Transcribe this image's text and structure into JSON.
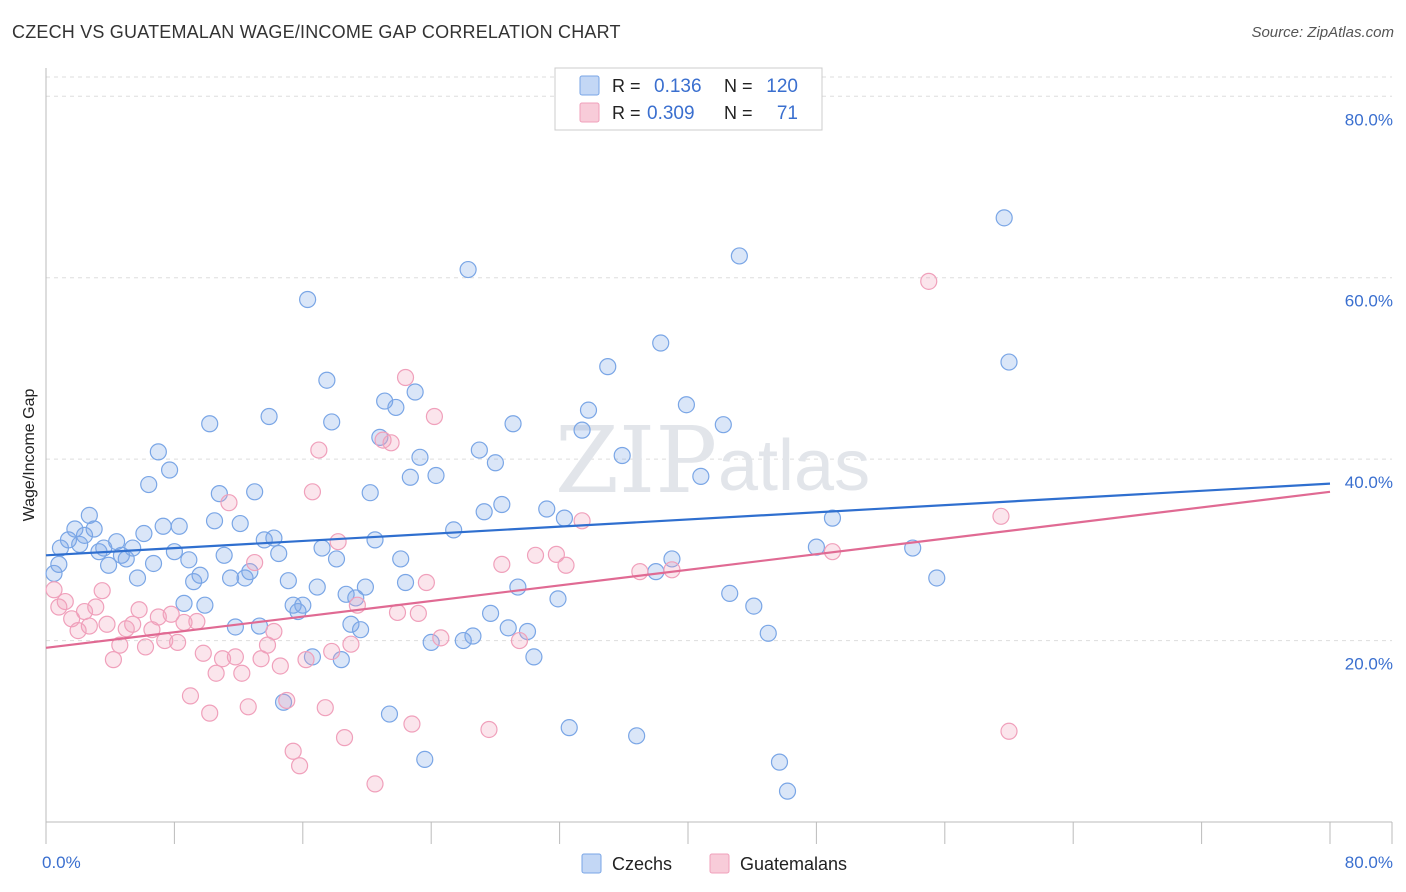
{
  "header": {
    "title": "CZECH VS GUATEMALAN WAGE/INCOME GAP CORRELATION CHART",
    "source": "Source: ZipAtlas.com"
  },
  "watermark": {
    "zip": "ZIP",
    "atlas": "atlas"
  },
  "legend_top": {
    "rows": [
      {
        "r_label": "R =",
        "r_value": "0.136",
        "n_label": "N =",
        "n_value": "120",
        "color": "#7aa6e6"
      },
      {
        "r_label": "R =",
        "r_value": "0.309",
        "n_label": "N =",
        "n_value": "71",
        "color": "#f0a0bb"
      }
    ]
  },
  "legend_bottom": {
    "items": [
      {
        "label": "Czechs",
        "color": "#7aa6e6"
      },
      {
        "label": "Guatemalans",
        "color": "#f0a0bb"
      }
    ]
  },
  "chart_data": {
    "type": "scatter",
    "title": "CZECH VS GUATEMALAN WAGE/INCOME GAP CORRELATION CHART",
    "xlabel": "",
    "ylabel": "Wage/Income Gap",
    "xlim": [
      0,
      80
    ],
    "ylim": [
      0,
      84
    ],
    "x_tick_labels": [
      "0.0%",
      "80.0%"
    ],
    "y_ticks": [
      20,
      40,
      60,
      80
    ],
    "y_tick_labels": [
      "20.0%",
      "40.0%",
      "60.0%",
      "80.0%"
    ],
    "grid": true,
    "legend_position": "top-center",
    "series": [
      {
        "name": "Czechs",
        "color": "#7aa6e6",
        "line_color": "#2f6fcf",
        "trend": [
          [
            0,
            29.4
          ],
          [
            80,
            37.3
          ]
        ],
        "points": [
          [
            0.5,
            27.4
          ],
          [
            0.8,
            28.4
          ],
          [
            0.9,
            30.2
          ],
          [
            1.4,
            31.1
          ],
          [
            1.8,
            32.3
          ],
          [
            2.1,
            30.6
          ],
          [
            2.4,
            31.6
          ],
          [
            2.7,
            33.8
          ],
          [
            3.0,
            32.3
          ],
          [
            3.3,
            29.8
          ],
          [
            3.6,
            30.2
          ],
          [
            3.9,
            28.3
          ],
          [
            4.4,
            30.9
          ],
          [
            4.7,
            29.4
          ],
          [
            5.0,
            29.0
          ],
          [
            5.4,
            30.2
          ],
          [
            5.7,
            26.9
          ],
          [
            6.1,
            31.8
          ],
          [
            6.4,
            37.2
          ],
          [
            6.7,
            28.5
          ],
          [
            7.0,
            40.8
          ],
          [
            7.3,
            32.6
          ],
          [
            7.7,
            38.8
          ],
          [
            8.0,
            29.8
          ],
          [
            8.3,
            32.6
          ],
          [
            8.6,
            24.1
          ],
          [
            8.9,
            28.9
          ],
          [
            9.2,
            26.5
          ],
          [
            9.6,
            27.2
          ],
          [
            9.9,
            23.9
          ],
          [
            10.2,
            43.9
          ],
          [
            10.5,
            33.2
          ],
          [
            10.8,
            36.2
          ],
          [
            11.1,
            29.4
          ],
          [
            11.5,
            26.9
          ],
          [
            11.8,
            21.5
          ],
          [
            12.1,
            32.9
          ],
          [
            12.4,
            26.9
          ],
          [
            12.7,
            27.6
          ],
          [
            13.0,
            36.4
          ],
          [
            13.3,
            21.6
          ],
          [
            13.6,
            31.1
          ],
          [
            13.9,
            44.7
          ],
          [
            14.2,
            31.3
          ],
          [
            14.5,
            29.6
          ],
          [
            14.8,
            13.2
          ],
          [
            15.1,
            26.6
          ],
          [
            15.4,
            23.9
          ],
          [
            15.7,
            23.2
          ],
          [
            16.0,
            23.9
          ],
          [
            16.3,
            57.6
          ],
          [
            16.6,
            18.2
          ],
          [
            16.9,
            25.9
          ],
          [
            17.2,
            30.2
          ],
          [
            17.5,
            48.7
          ],
          [
            17.8,
            44.1
          ],
          [
            18.1,
            29.0
          ],
          [
            18.4,
            17.9
          ],
          [
            18.7,
            25.1
          ],
          [
            19.0,
            21.8
          ],
          [
            19.3,
            24.7
          ],
          [
            19.6,
            21.2
          ],
          [
            19.9,
            25.9
          ],
          [
            20.2,
            36.3
          ],
          [
            20.5,
            31.1
          ],
          [
            20.8,
            42.4
          ],
          [
            21.1,
            46.4
          ],
          [
            21.4,
            11.9
          ],
          [
            21.8,
            45.7
          ],
          [
            22.1,
            29.0
          ],
          [
            22.4,
            26.4
          ],
          [
            22.7,
            38.0
          ],
          [
            23.0,
            47.4
          ],
          [
            23.3,
            40.2
          ],
          [
            23.6,
            6.9
          ],
          [
            24.0,
            19.8
          ],
          [
            24.3,
            38.2
          ],
          [
            25.4,
            32.2
          ],
          [
            26.0,
            20.0
          ],
          [
            26.3,
            60.9
          ],
          [
            26.6,
            20.5
          ],
          [
            27.0,
            41.0
          ],
          [
            27.3,
            34.2
          ],
          [
            27.7,
            23.0
          ],
          [
            28.0,
            39.6
          ],
          [
            28.4,
            35.0
          ],
          [
            28.8,
            21.4
          ],
          [
            29.1,
            43.9
          ],
          [
            29.4,
            25.9
          ],
          [
            30.0,
            21.0
          ],
          [
            30.4,
            18.2
          ],
          [
            31.2,
            34.5
          ],
          [
            31.9,
            24.6
          ],
          [
            32.3,
            33.5
          ],
          [
            32.6,
            10.4
          ],
          [
            33.4,
            43.2
          ],
          [
            33.8,
            45.4
          ],
          [
            35.0,
            50.2
          ],
          [
            35.9,
            40.4
          ],
          [
            36.8,
            9.5
          ],
          [
            38.0,
            27.6
          ],
          [
            38.3,
            52.8
          ],
          [
            39.0,
            29.0
          ],
          [
            39.9,
            46.0
          ],
          [
            40.8,
            38.1
          ],
          [
            42.2,
            43.8
          ],
          [
            42.6,
            25.2
          ],
          [
            43.2,
            62.4
          ],
          [
            44.1,
            23.8
          ],
          [
            45.0,
            20.8
          ],
          [
            45.7,
            6.6
          ],
          [
            46.2,
            3.4
          ],
          [
            48.0,
            30.3
          ],
          [
            49.0,
            33.5
          ],
          [
            54.0,
            30.2
          ],
          [
            55.5,
            26.9
          ],
          [
            59.7,
            66.6
          ],
          [
            60.0,
            50.7
          ]
        ]
      },
      {
        "name": "Guatemalans",
        "color": "#f0a0bb",
        "line_color": "#e06a93",
        "trend": [
          [
            0,
            19.2
          ],
          [
            80,
            36.4
          ]
        ],
        "points": [
          [
            0.5,
            25.6
          ],
          [
            0.8,
            23.7
          ],
          [
            1.2,
            24.3
          ],
          [
            1.6,
            22.4
          ],
          [
            2.0,
            21.1
          ],
          [
            2.4,
            23.2
          ],
          [
            2.7,
            21.6
          ],
          [
            3.1,
            23.7
          ],
          [
            3.5,
            25.5
          ],
          [
            3.8,
            21.8
          ],
          [
            4.2,
            17.9
          ],
          [
            4.6,
            19.5
          ],
          [
            5.0,
            21.3
          ],
          [
            5.4,
            21.8
          ],
          [
            5.8,
            23.4
          ],
          [
            6.2,
            19.3
          ],
          [
            6.6,
            21.2
          ],
          [
            7.0,
            22.6
          ],
          [
            7.4,
            20.0
          ],
          [
            7.8,
            22.9
          ],
          [
            8.2,
            19.8
          ],
          [
            8.6,
            22.0
          ],
          [
            9.0,
            13.9
          ],
          [
            9.4,
            22.1
          ],
          [
            9.8,
            18.6
          ],
          [
            10.2,
            12.0
          ],
          [
            10.6,
            16.4
          ],
          [
            11.0,
            18.0
          ],
          [
            11.4,
            35.2
          ],
          [
            11.8,
            18.2
          ],
          [
            12.2,
            16.4
          ],
          [
            12.6,
            12.7
          ],
          [
            13.0,
            28.6
          ],
          [
            13.4,
            18.0
          ],
          [
            13.8,
            19.5
          ],
          [
            14.2,
            21.0
          ],
          [
            14.6,
            17.2
          ],
          [
            15.0,
            13.4
          ],
          [
            15.4,
            7.8
          ],
          [
            15.8,
            6.2
          ],
          [
            16.2,
            17.9
          ],
          [
            16.6,
            36.4
          ],
          [
            17.0,
            41.0
          ],
          [
            17.4,
            12.6
          ],
          [
            17.8,
            18.8
          ],
          [
            18.2,
            30.9
          ],
          [
            18.6,
            9.3
          ],
          [
            19.0,
            19.6
          ],
          [
            19.4,
            23.9
          ],
          [
            20.5,
            4.2
          ],
          [
            21.0,
            42.1
          ],
          [
            21.5,
            41.8
          ],
          [
            21.9,
            23.1
          ],
          [
            22.4,
            49.0
          ],
          [
            22.8,
            10.8
          ],
          [
            23.2,
            23.0
          ],
          [
            23.7,
            26.4
          ],
          [
            24.2,
            44.7
          ],
          [
            24.6,
            20.3
          ],
          [
            27.6,
            10.2
          ],
          [
            28.4,
            28.4
          ],
          [
            29.5,
            20.0
          ],
          [
            30.5,
            29.4
          ],
          [
            31.8,
            29.5
          ],
          [
            32.4,
            28.3
          ],
          [
            33.4,
            33.2
          ],
          [
            37.0,
            27.6
          ],
          [
            39.0,
            27.8
          ],
          [
            49.0,
            29.8
          ],
          [
            55.0,
            59.6
          ],
          [
            59.5,
            33.7
          ],
          [
            60.0,
            10.0
          ]
        ]
      }
    ]
  }
}
